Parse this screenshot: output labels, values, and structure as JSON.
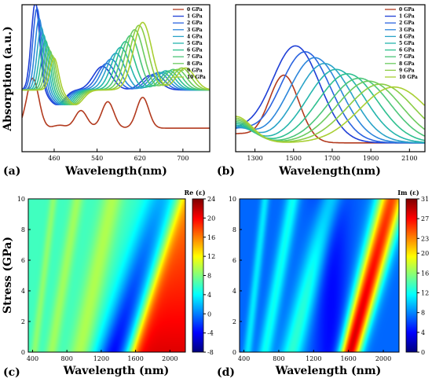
{
  "chart_data": [
    {
      "type": "line",
      "panel_label": "(a)",
      "xlabel": "Wavelength(nm)",
      "ylabel": "Absorption (a.u.)",
      "xlim": [
        400,
        750
      ],
      "ylim": [
        0,
        1
      ],
      "xticks": [
        "460",
        "540",
        "620",
        "700"
      ],
      "legend_position": "top-right",
      "series": [
        {
          "name": "0 GPa",
          "color": "#b23a1e",
          "peaks": [
            [
              420,
              0.5
            ],
            [
              470,
              0.18
            ],
            [
              510,
              0.28
            ],
            [
              560,
              0.34
            ],
            [
              625,
              0.37
            ]
          ]
        },
        {
          "name": "1 GPa",
          "color": "#1f3fd6",
          "peaks": [
            [
              425,
              0.96
            ],
            [
              550,
              0.52
            ],
            [
              640,
              0.46
            ]
          ]
        },
        {
          "name": "2 GPa",
          "color": "#2b64e0",
          "peaks": [
            [
              428,
              0.92
            ],
            [
              558,
              0.54
            ],
            [
              648,
              0.47
            ]
          ]
        },
        {
          "name": "3 GPa",
          "color": "#2c86db",
          "peaks": [
            [
              432,
              0.85
            ],
            [
              566,
              0.57
            ],
            [
              655,
              0.48
            ]
          ]
        },
        {
          "name": "4 GPa",
          "color": "#2aa3c8",
          "peaks": [
            [
              436,
              0.79
            ],
            [
              575,
              0.61
            ],
            [
              662,
              0.48
            ]
          ]
        },
        {
          "name": "5 GPa",
          "color": "#25b5ad",
          "peaks": [
            [
              440,
              0.74
            ],
            [
              584,
              0.65
            ],
            [
              668,
              0.49
            ]
          ]
        },
        {
          "name": "6 GPa",
          "color": "#2ec08f",
          "peaks": [
            [
              444,
              0.7
            ],
            [
              593,
              0.69
            ],
            [
              675,
              0.49
            ]
          ]
        },
        {
          "name": "7 GPa",
          "color": "#4cc679",
          "peaks": [
            [
              448,
              0.66
            ],
            [
              602,
              0.73
            ],
            [
              682,
              0.5
            ]
          ]
        },
        {
          "name": "8 GPa",
          "color": "#6bcb5f",
          "peaks": [
            [
              452,
              0.63
            ],
            [
              610,
              0.77
            ],
            [
              690,
              0.5
            ]
          ]
        },
        {
          "name": "9 GPa",
          "color": "#8ccd45",
          "peaks": [
            [
              456,
              0.6
            ],
            [
              618,
              0.8
            ],
            [
              698,
              0.51
            ]
          ]
        },
        {
          "name": "10 GPa",
          "color": "#a9cf33",
          "peaks": [
            [
              460,
              0.58
            ],
            [
              625,
              0.82
            ],
            [
              705,
              0.51
            ]
          ]
        }
      ]
    },
    {
      "type": "line",
      "panel_label": "(b)",
      "xlabel": "Wavelength(nm)",
      "ylabel": "",
      "xlim": [
        1200,
        2180
      ],
      "ylim": [
        0,
        1
      ],
      "xticks": [
        "1300",
        "1500",
        "1700",
        "1900",
        "2100"
      ],
      "legend_position": "top-right",
      "series": [
        {
          "name": "0 GPa",
          "color": "#b23a1e",
          "peak": [
            1450,
            0.52
          ]
        },
        {
          "name": "1 GPa",
          "color": "#1f3fd6",
          "peak": [
            1510,
            0.72
          ]
        },
        {
          "name": "2 GPa",
          "color": "#2b64e0",
          "peak": [
            1560,
            0.68
          ]
        },
        {
          "name": "3 GPa",
          "color": "#2c86db",
          "peak": [
            1610,
            0.64
          ]
        },
        {
          "name": "4 GPa",
          "color": "#2aa3c8",
          "peak": [
            1660,
            0.6
          ]
        },
        {
          "name": "5 GPa",
          "color": "#25b5ad",
          "peak": [
            1720,
            0.56
          ]
        },
        {
          "name": "6 GPa",
          "color": "#2ec08f",
          "peak": [
            1780,
            0.53
          ]
        },
        {
          "name": "7 GPa",
          "color": "#4cc679",
          "peak": [
            1840,
            0.5
          ]
        },
        {
          "name": "8 GPa",
          "color": "#6bcb5f",
          "peak": [
            1890,
            0.48
          ]
        },
        {
          "name": "9 GPa",
          "color": "#8ccd45",
          "peak": [
            1950,
            0.46
          ]
        },
        {
          "name": "10 GPa",
          "color": "#a9cf33",
          "peak": [
            2020,
            0.44
          ]
        }
      ]
    },
    {
      "type": "heatmap",
      "panel_label": "(c)",
      "xlabel": "Wavelength (nm)",
      "ylabel": "Stress (GPa)",
      "colorbar_title": "Re (ε)",
      "xlim": [
        350,
        2180
      ],
      "ylim": [
        0,
        10
      ],
      "xticks": [
        "400",
        "800",
        "1200",
        "1600",
        "2000"
      ],
      "yticks": [
        "0",
        "2",
        "4",
        "6",
        "8",
        "10"
      ],
      "colorbar_range": [
        -8,
        24
      ],
      "colorbar_ticks": [
        "24",
        "20",
        "16",
        "12",
        "8",
        "4",
        "0",
        "-4",
        "-8"
      ]
    },
    {
      "type": "heatmap",
      "panel_label": "(d)",
      "xlabel": "Wavelength (nm)",
      "ylabel": "",
      "colorbar_title": "Im (ε)",
      "xlim": [
        350,
        2180
      ],
      "ylim": [
        0,
        10
      ],
      "xticks": [
        "400",
        "800",
        "1200",
        "1600",
        "2000"
      ],
      "yticks": [
        "0",
        "2",
        "4",
        "6",
        "8",
        "10"
      ],
      "colorbar_range": [
        0,
        31
      ],
      "colorbar_ticks": [
        "31",
        "27",
        "23",
        "20",
        "16",
        "12",
        "8",
        "4",
        "0"
      ]
    }
  ]
}
